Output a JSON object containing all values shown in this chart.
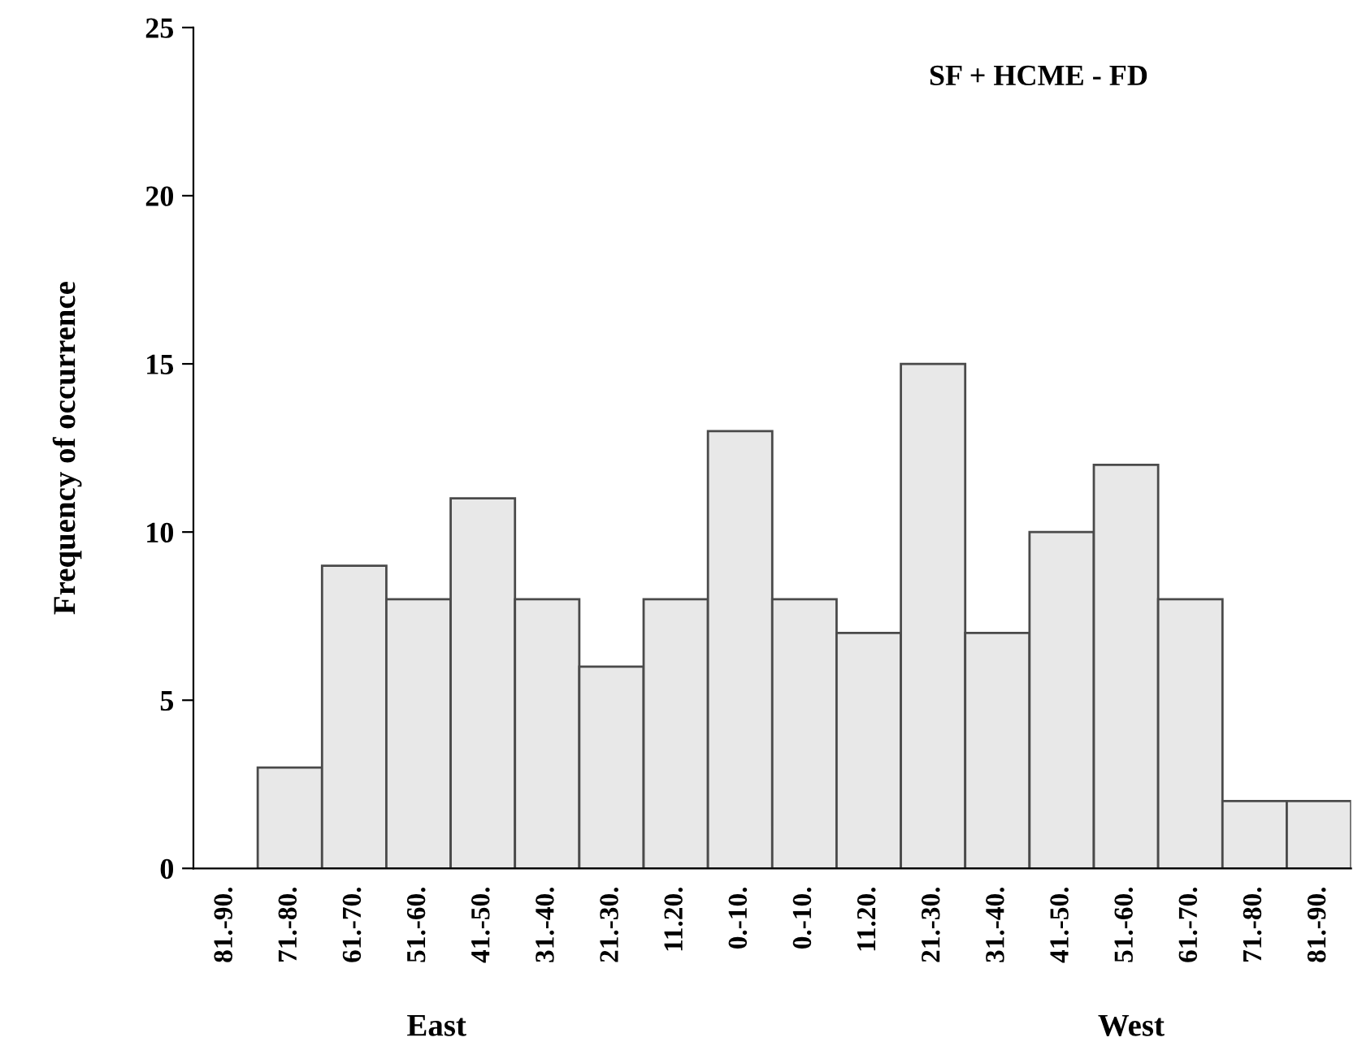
{
  "chart_data": {
    "type": "bar",
    "title": "SF + HCME - FD",
    "ylabel": "Frequency of occurrence",
    "annotations": [
      "East",
      "West"
    ],
    "categories": [
      "81.-90.",
      "71.-80.",
      "61.-70.",
      "51.-60.",
      "41.-50.",
      "31.-40.",
      "21.-30.",
      "11.20.",
      "0.-10.",
      "0.-10.",
      "11.20.",
      "21.-30.",
      "31.-40.",
      "41.-50.",
      "51.-60.",
      "61.-70.",
      "71.-80.",
      "81.-90."
    ],
    "values": [
      0,
      3,
      9,
      8,
      11,
      8,
      6,
      8,
      13,
      8,
      7,
      15,
      7,
      10,
      12,
      8,
      2,
      2
    ],
    "color": "#e8e8e8",
    "ylim": [
      0,
      25
    ],
    "yticks": [
      0,
      5,
      10,
      15,
      20,
      25
    ],
    "grid": false,
    "legend": false
  }
}
